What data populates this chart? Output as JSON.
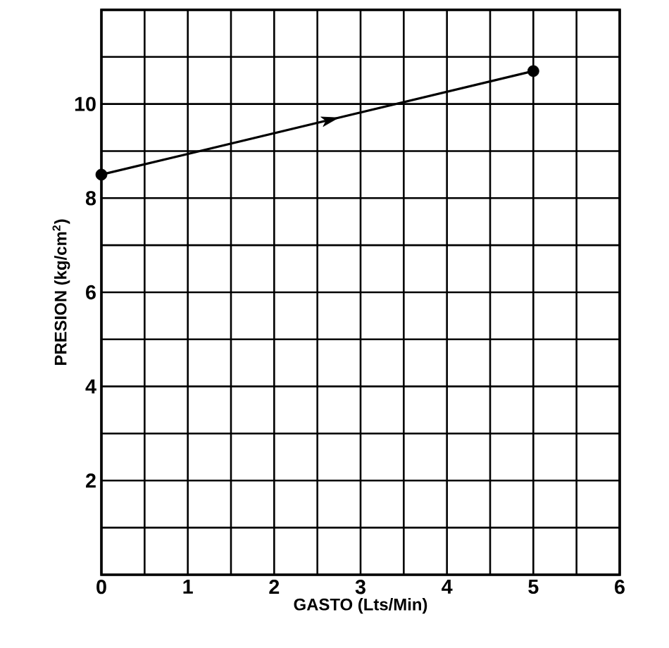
{
  "chart_data": {
    "type": "line",
    "xlabel": "GASTO (Lts/Min)",
    "ylabel": "PRESION (kg/cm$^{2}$)",
    "x": [
      0,
      5
    ],
    "series": [
      {
        "color": "#000000",
        "values": [
          8.5,
          10.7
        ]
      }
    ],
    "marker": "circle",
    "line_style": "solid",
    "grid": true,
    "xlim": [
      0,
      6
    ],
    "ylim": [
      0,
      12
    ],
    "xticks": [
      0,
      {
        "value": 0.5,
        "label": null
      },
      1,
      {
        "value": 1.5,
        "label": null
      },
      2,
      {
        "value": 2.5,
        "label": null
      },
      3,
      {
        "value": 3.5,
        "label": null
      },
      4,
      {
        "value": 4.5,
        "label": null
      },
      5,
      {
        "value": 5.5,
        "label": null
      },
      6
    ],
    "yticks": [
      {
        "value": 0,
        "label": null
      },
      {
        "value": 1,
        "label": null
      },
      2,
      {
        "value": 3,
        "label": null
      },
      4,
      {
        "value": 5,
        "label": null
      },
      6,
      {
        "value": 7,
        "label": null
      },
      8,
      {
        "value": 9,
        "label": null
      },
      10,
      {
        "value": 11,
        "label": null
      },
      {
        "value": 12,
        "label": null
      }
    ]
  }
}
